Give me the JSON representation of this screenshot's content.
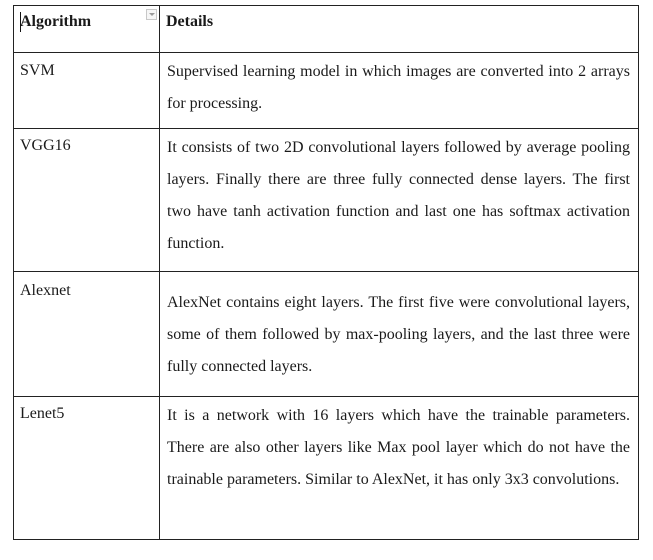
{
  "table": {
    "headers": {
      "algorithm": "Algorithm",
      "details": "Details"
    },
    "rows": [
      {
        "algorithm": "SVM",
        "details": "Supervised learning model in which images are converted into 2 arrays for processing."
      },
      {
        "algorithm": "VGG16",
        "details": "It consists of two 2D convolutional layers followed by average pooling layers. Finally there are three fully connected dense layers. The first two have tanh activation function and last one has softmax activation function."
      },
      {
        "algorithm": "Alexnet",
        "details": "AlexNet contains eight layers. The first five were convolutional layers, some of them followed by max-pooling layers, and the last three were fully connected layers."
      },
      {
        "algorithm": "Lenet5",
        "details": "It is a network with 16 layers which have the trainable parameters. There are also other layers like Max pool layer which do not have the trainable parameters. Similar to AlexNet, it has only 3x3 convolutions."
      }
    ]
  }
}
